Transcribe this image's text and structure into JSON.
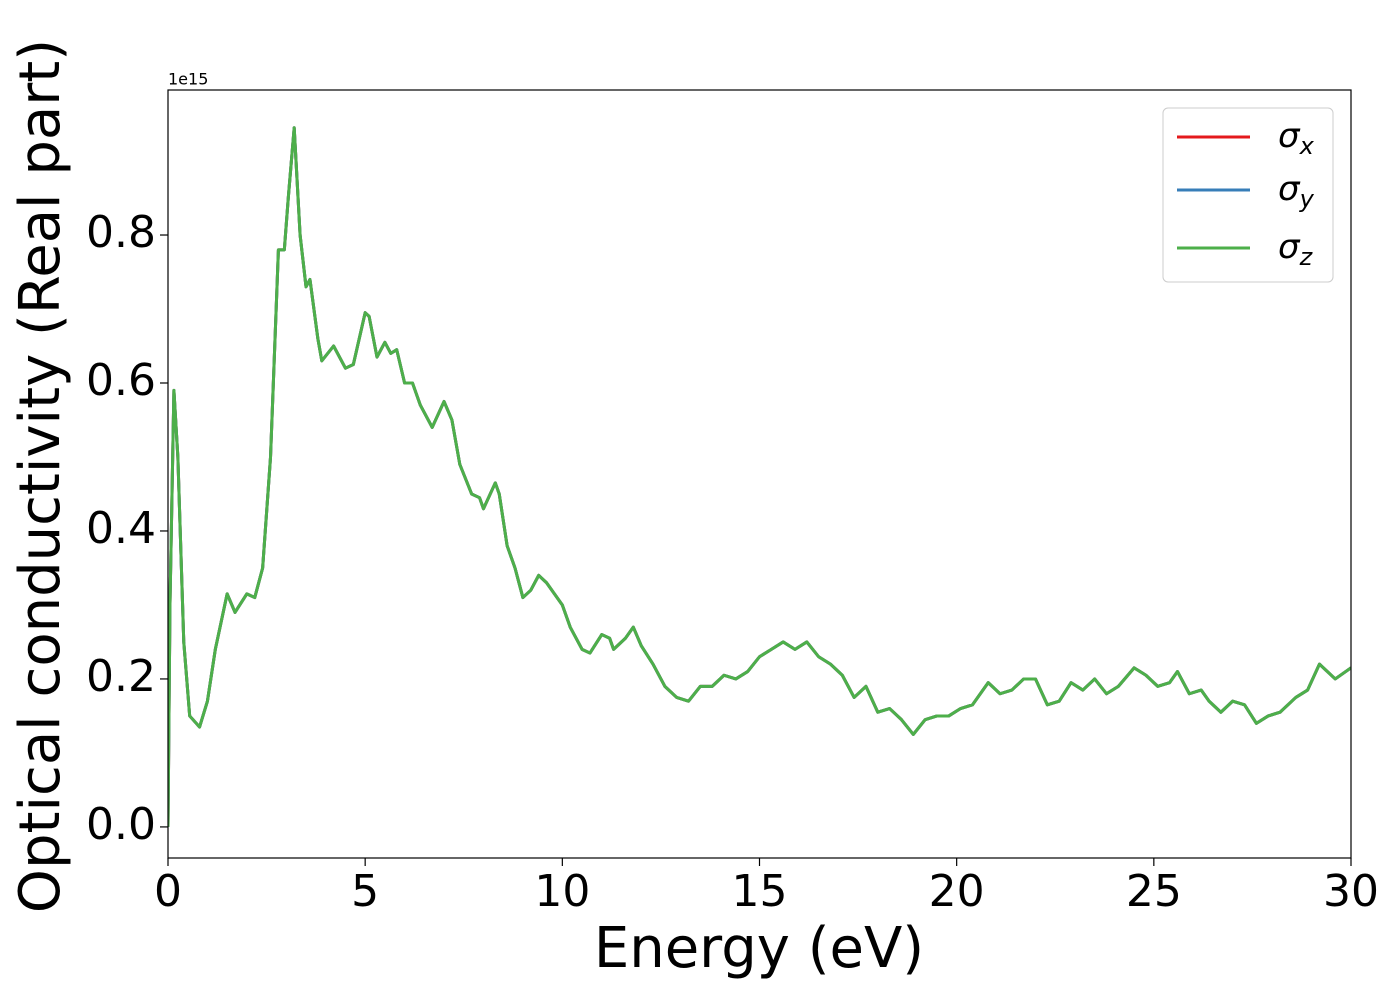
{
  "chart_data": {
    "type": "line",
    "x_label": "Energy (eV)",
    "y_label": "Optical conductivity (Real part)",
    "y_offset_label": "1e15",
    "x": [
      0,
      0.05,
      0.15,
      0.25,
      0.4,
      0.55,
      0.8,
      1.0,
      1.2,
      1.5,
      1.7,
      2.0,
      2.2,
      2.4,
      2.6,
      2.8,
      2.95,
      3.05,
      3.2,
      3.35,
      3.5,
      3.6,
      3.8,
      3.9,
      4.2,
      4.5,
      4.7,
      5.0,
      5.1,
      5.3,
      5.5,
      5.65,
      5.8,
      6.0,
      6.2,
      6.4,
      6.7,
      7.0,
      7.2,
      7.4,
      7.7,
      7.9,
      8.0,
      8.3,
      8.4,
      8.6,
      8.8,
      9.0,
      9.2,
      9.4,
      9.6,
      10.0,
      10.2,
      10.5,
      10.7,
      11.0,
      11.2,
      11.3,
      11.6,
      11.8,
      12.0,
      12.3,
      12.6,
      12.9,
      13.2,
      13.5,
      13.8,
      14.1,
      14.4,
      14.7,
      15.0,
      15.3,
      15.6,
      15.9,
      16.2,
      16.5,
      16.8,
      17.1,
      17.4,
      17.7,
      18.0,
      18.3,
      18.6,
      18.9,
      19.2,
      19.5,
      19.8,
      20.1,
      20.4,
      20.8,
      21.1,
      21.4,
      21.7,
      22.0,
      22.3,
      22.6,
      22.9,
      23.2,
      23.5,
      23.8,
      24.1,
      24.5,
      24.8,
      25.1,
      25.4,
      25.6,
      25.9,
      26.2,
      26.4,
      26.7,
      27.0,
      27.3,
      27.6,
      27.9,
      28.2,
      28.6,
      28.9,
      29.2,
      29.6,
      30.0
    ],
    "series": [
      {
        "name": "σx",
        "color": "#e41a1c",
        "values": [
          0,
          0.3,
          0.59,
          0.5,
          0.25,
          0.15,
          0.135,
          0.17,
          0.24,
          0.315,
          0.29,
          0.315,
          0.31,
          0.35,
          0.5,
          0.78,
          0.78,
          0.85,
          0.945,
          0.8,
          0.73,
          0.74,
          0.66,
          0.63,
          0.65,
          0.62,
          0.625,
          0.695,
          0.69,
          0.635,
          0.655,
          0.64,
          0.645,
          0.6,
          0.6,
          0.57,
          0.54,
          0.575,
          0.55,
          0.49,
          0.45,
          0.445,
          0.43,
          0.465,
          0.45,
          0.38,
          0.35,
          0.31,
          0.32,
          0.34,
          0.33,
          0.3,
          0.27,
          0.24,
          0.235,
          0.26,
          0.255,
          0.24,
          0.255,
          0.27,
          0.245,
          0.22,
          0.19,
          0.175,
          0.17,
          0.19,
          0.19,
          0.205,
          0.2,
          0.21,
          0.23,
          0.24,
          0.25,
          0.24,
          0.25,
          0.23,
          0.22,
          0.205,
          0.175,
          0.19,
          0.155,
          0.16,
          0.145,
          0.125,
          0.145,
          0.15,
          0.15,
          0.16,
          0.165,
          0.195,
          0.18,
          0.185,
          0.2,
          0.2,
          0.165,
          0.17,
          0.195,
          0.185,
          0.2,
          0.18,
          0.19,
          0.215,
          0.205,
          0.19,
          0.195,
          0.21,
          0.18,
          0.185,
          0.17,
          0.155,
          0.17,
          0.165,
          0.14,
          0.15,
          0.155,
          0.175,
          0.185,
          0.22,
          0.2,
          0.215
        ]
      },
      {
        "name": "σy",
        "color": "#377eb8",
        "values": [
          0,
          0.3,
          0.59,
          0.5,
          0.25,
          0.15,
          0.135,
          0.17,
          0.24,
          0.315,
          0.29,
          0.315,
          0.31,
          0.35,
          0.5,
          0.78,
          0.78,
          0.85,
          0.945,
          0.8,
          0.73,
          0.74,
          0.66,
          0.63,
          0.65,
          0.62,
          0.625,
          0.695,
          0.69,
          0.635,
          0.655,
          0.64,
          0.645,
          0.6,
          0.6,
          0.57,
          0.54,
          0.575,
          0.55,
          0.49,
          0.45,
          0.445,
          0.43,
          0.465,
          0.45,
          0.38,
          0.35,
          0.31,
          0.32,
          0.34,
          0.33,
          0.3,
          0.27,
          0.24,
          0.235,
          0.26,
          0.255,
          0.24,
          0.255,
          0.27,
          0.245,
          0.22,
          0.19,
          0.175,
          0.17,
          0.19,
          0.19,
          0.205,
          0.2,
          0.21,
          0.23,
          0.24,
          0.25,
          0.24,
          0.25,
          0.23,
          0.22,
          0.205,
          0.175,
          0.19,
          0.155,
          0.16,
          0.145,
          0.125,
          0.145,
          0.15,
          0.15,
          0.16,
          0.165,
          0.195,
          0.18,
          0.185,
          0.2,
          0.2,
          0.165,
          0.17,
          0.195,
          0.185,
          0.2,
          0.18,
          0.19,
          0.215,
          0.205,
          0.19,
          0.195,
          0.21,
          0.18,
          0.185,
          0.17,
          0.155,
          0.17,
          0.165,
          0.14,
          0.15,
          0.155,
          0.175,
          0.185,
          0.22,
          0.2,
          0.215
        ]
      },
      {
        "name": "σz",
        "color": "#4daf4a",
        "values": [
          0,
          0.3,
          0.59,
          0.5,
          0.25,
          0.15,
          0.135,
          0.17,
          0.24,
          0.315,
          0.29,
          0.315,
          0.31,
          0.35,
          0.5,
          0.78,
          0.78,
          0.85,
          0.945,
          0.8,
          0.73,
          0.74,
          0.66,
          0.63,
          0.65,
          0.62,
          0.625,
          0.695,
          0.69,
          0.635,
          0.655,
          0.64,
          0.645,
          0.6,
          0.6,
          0.57,
          0.54,
          0.575,
          0.55,
          0.49,
          0.45,
          0.445,
          0.43,
          0.465,
          0.45,
          0.38,
          0.35,
          0.31,
          0.32,
          0.34,
          0.33,
          0.3,
          0.27,
          0.24,
          0.235,
          0.26,
          0.255,
          0.24,
          0.255,
          0.27,
          0.245,
          0.22,
          0.19,
          0.175,
          0.17,
          0.19,
          0.19,
          0.205,
          0.2,
          0.21,
          0.23,
          0.24,
          0.25,
          0.24,
          0.25,
          0.23,
          0.22,
          0.205,
          0.175,
          0.19,
          0.155,
          0.16,
          0.145,
          0.125,
          0.145,
          0.15,
          0.15,
          0.16,
          0.165,
          0.195,
          0.18,
          0.185,
          0.2,
          0.2,
          0.165,
          0.17,
          0.195,
          0.185,
          0.2,
          0.18,
          0.19,
          0.215,
          0.205,
          0.19,
          0.195,
          0.21,
          0.18,
          0.185,
          0.17,
          0.155,
          0.17,
          0.165,
          0.14,
          0.15,
          0.155,
          0.175,
          0.185,
          0.22,
          0.2,
          0.215
        ]
      }
    ],
    "xlim": [
      0,
      30
    ],
    "xticks": [
      0,
      5,
      10,
      15,
      20,
      25,
      30
    ],
    "ylim": [
      -0.042,
      0.996
    ],
    "yticks": [
      {
        "value": 0,
        "label": "0.0"
      },
      {
        "value": 0.2,
        "label": "0.2"
      },
      {
        "value": 0.4,
        "label": "0.4"
      },
      {
        "value": 0.6,
        "label": "0.6"
      },
      {
        "value": 0.8,
        "label": "0.8"
      }
    ],
    "legend": "upper right",
    "grid": false
  }
}
